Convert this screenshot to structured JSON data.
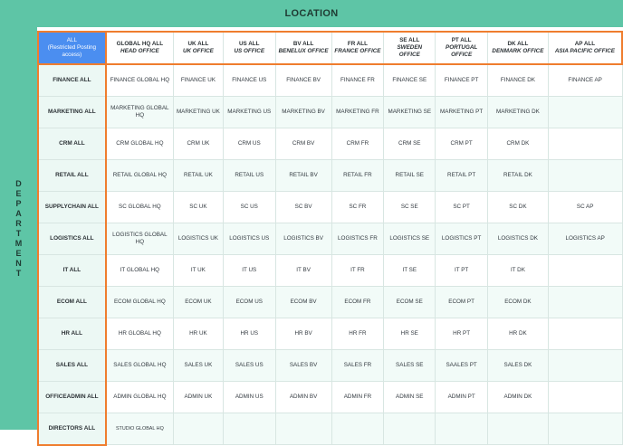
{
  "location_title": "LOCATION",
  "department_letters": [
    "D",
    "E",
    "P",
    "A",
    "R",
    "T",
    "M",
    "E",
    "N",
    "T"
  ],
  "corner": {
    "line1": "ALL",
    "line2": "(Restricted Posting access)"
  },
  "columns": [
    {
      "code": "GLOBAL HQ ALL",
      "office": "HEAD OFFICE"
    },
    {
      "code": "UK ALL",
      "office": "UK OFFICE"
    },
    {
      "code": "US ALL",
      "office": "US OFFICE"
    },
    {
      "code": "BV ALL",
      "office": "BENELUX OFFICE"
    },
    {
      "code": "FR ALL",
      "office": "FRANCE OFFICE"
    },
    {
      "code": "SE ALL",
      "office": "SWEDEN OFFICE"
    },
    {
      "code": "PT ALL",
      "office": "PORTUGAL OFFICE"
    },
    {
      "code": "DK ALL",
      "office": "DENMARK OFFICE"
    },
    {
      "code": "AP ALL",
      "office": "ASIA PACIFIC OFFICE"
    }
  ],
  "rows": [
    {
      "label": "FINANCE ALL",
      "cells": [
        "FINANCE GLOBAL HQ",
        "FINANCE UK",
        "FINANCE US",
        "FINANCE BV",
        "FINANCE FR",
        "FINANCE SE",
        "FINANCE PT",
        "FINANCE DK",
        "FINANCE AP"
      ]
    },
    {
      "label": "MARKETING ALL",
      "cells": [
        "MARKETING GLOBAL HQ",
        "MARKETING UK",
        "MARKETING US",
        "MARKETING BV",
        "MARKETING FR",
        "MARKETING SE",
        "MARKETING PT",
        "MARKETING DK",
        ""
      ]
    },
    {
      "label": "CRM ALL",
      "cells": [
        "CRM GLOBAL HQ",
        "CRM UK",
        "CRM US",
        "CRM BV",
        "CRM FR",
        "CRM SE",
        "CRM PT",
        "CRM DK",
        ""
      ]
    },
    {
      "label": "RETAIL ALL",
      "cells": [
        "RETAIL GLOBAL HQ",
        "RETAIL UK",
        "RETAIL  US",
        "RETAIL BV",
        "RETAIL  FR",
        "RETAIL  SE",
        "RETAIL  PT",
        "RETAIL  DK",
        ""
      ]
    },
    {
      "label": "SUPPLYCHAIN ALL",
      "cells": [
        "SC GLOBAL HQ",
        "SC UK",
        "SC US",
        "SC BV",
        "SC FR",
        "SC SE",
        "SC PT",
        "SC DK",
        "SC AP"
      ]
    },
    {
      "label": "LOGISTICS ALL",
      "cells": [
        "LOGISTICS GLOBAL HQ",
        "LOGISTICS UK",
        "LOGISTICS US",
        "LOGISTICS BV",
        "LOGISTICS FR",
        "LOGISTICS SE",
        "LOGISTICS PT",
        "LOGISTICS DK",
        "LOGISTICS AP"
      ]
    },
    {
      "label": "IT ALL",
      "cells": [
        "IT GLOBAL HQ",
        "IT UK",
        "IT US",
        "IT BV",
        "IT FR",
        "IT SE",
        "IT PT",
        "IT DK",
        ""
      ]
    },
    {
      "label": "ECOM ALL",
      "cells": [
        "ECOM GLOBAL HQ",
        "ECOM UK",
        "ECOM US",
        "ECOM BV",
        "ECOM FR",
        "ECOM SE",
        "ECOM PT",
        "ECOM DK",
        ""
      ]
    },
    {
      "label": "HR ALL",
      "cells": [
        "HR GLOBAL HQ",
        "HR UK",
        "HR US",
        "HR BV",
        "HR FR",
        "HR SE",
        "HR PT",
        "HR DK",
        ""
      ]
    },
    {
      "label": "SALES ALL",
      "cells": [
        "SALES GLOBAL HQ",
        "SALES UK",
        "SALES US",
        "SALES BV",
        "SALES FR",
        "SALES SE",
        "SAALES PT",
        "SALES DK",
        ""
      ]
    },
    {
      "label": "OFFICEADMIN ALL",
      "cells": [
        "ADMIN GLOBAL HQ",
        "ADMIN UK",
        "ADMIN US",
        "ADMIN BV",
        "ADMIN FR",
        "ADMIN SE",
        "ADMIN PT",
        "ADMIN DK",
        ""
      ]
    },
    {
      "label": "DIRECTORS ALL",
      "cells": [
        "STUDIO GLOBAL HQ",
        "",
        "",
        "",
        "",
        "",
        "",
        "",
        ""
      ]
    }
  ]
}
